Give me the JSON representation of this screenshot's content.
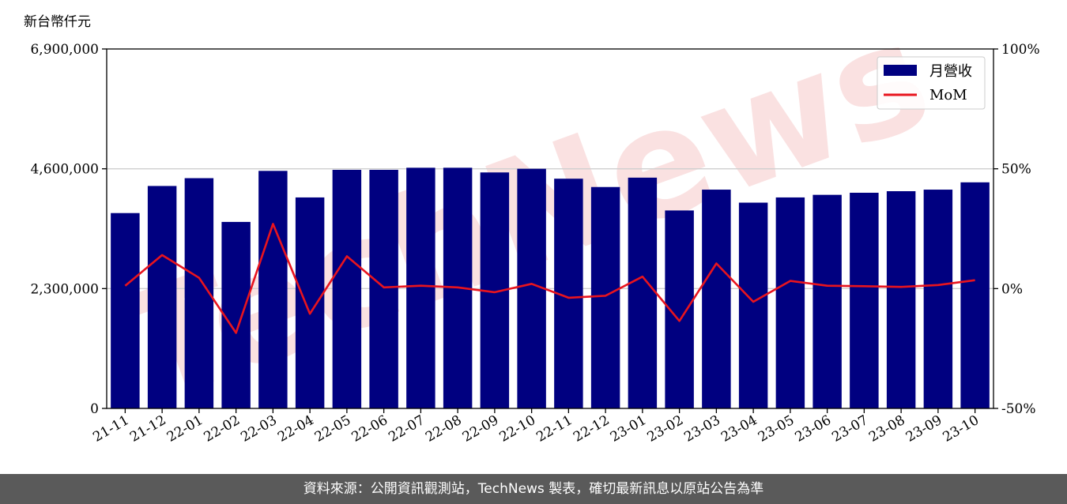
{
  "chart_data": {
    "type": "bar",
    "unit_label": "新台幣仟元",
    "categories": [
      "21-11",
      "21-12",
      "22-01",
      "22-02",
      "22-03",
      "22-04",
      "22-05",
      "22-06",
      "22-07",
      "22-08",
      "22-09",
      "22-10",
      "22-11",
      "22-12",
      "23-01",
      "23-02",
      "23-03",
      "23-04",
      "23-05",
      "23-06",
      "23-07",
      "23-08",
      "23-09",
      "23-10"
    ],
    "series": [
      {
        "name": "月營收",
        "type": "bar",
        "axis": "left",
        "color": "#000080",
        "values": [
          3750000,
          4270000,
          4420000,
          3580000,
          4560000,
          4050000,
          4580000,
          4580000,
          4620000,
          4620000,
          4530000,
          4600000,
          4410000,
          4250000,
          4430000,
          3800000,
          4200000,
          3950000,
          4050000,
          4100000,
          4140000,
          4170000,
          4200000,
          4340000
        ]
      },
      {
        "name": "MoM",
        "type": "line",
        "axis": "right",
        "color": "#e8141e",
        "values": [
          1.2,
          14,
          4.5,
          -18.5,
          27,
          -10.5,
          13.5,
          0.5,
          1.2,
          0.5,
          -1.5,
          2,
          -3.8,
          -3,
          5,
          -13.5,
          10.5,
          -5.5,
          3.2,
          1.2,
          1,
          0.7,
          1.5,
          3.5
        ]
      }
    ],
    "y_left": {
      "ylim": [
        0,
        6900000
      ],
      "ticks": [
        "0",
        "2,300,000",
        "4,600,000",
        "6,900,000"
      ],
      "tick_values": [
        0,
        2300000,
        4600000,
        6900000
      ]
    },
    "y_right": {
      "ylim": [
        -50,
        100
      ],
      "ticks": [
        "-50%",
        "0%",
        "50%",
        "100%"
      ],
      "tick_values": [
        -50,
        0,
        50,
        100
      ]
    },
    "grid": "horizontal",
    "legend_position": "top-right",
    "watermark": "TechNews",
    "watermark_color": "#f5c8c8"
  },
  "footer": {
    "text": "資料來源：公開資訊觀測站，TechNews 製表，確切最新訊息以原站公告為準"
  }
}
